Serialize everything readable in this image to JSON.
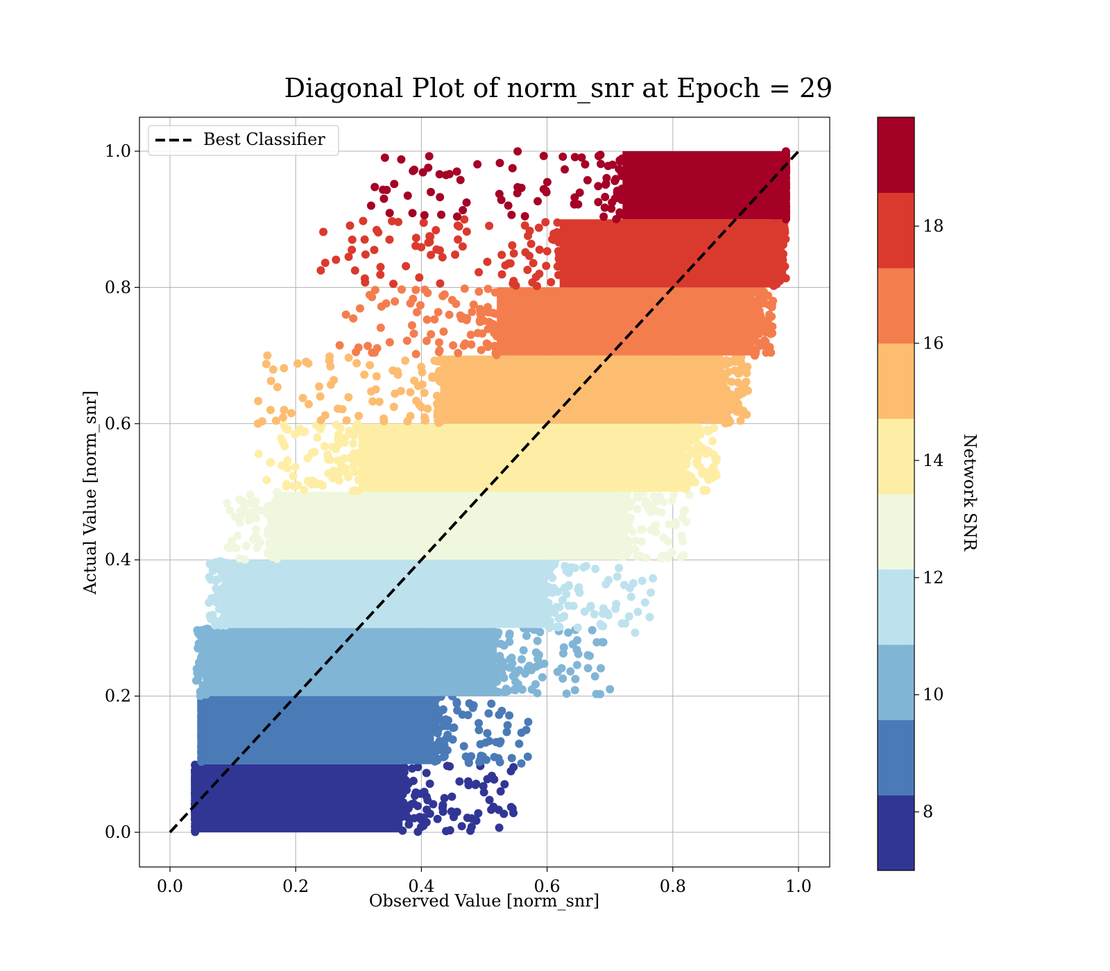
{
  "chart_data": {
    "type": "scatter",
    "title": "Diagonal Plot of norm_snr at Epoch = 29",
    "xlabel": "Observed Value [norm_snr]",
    "ylabel": "Actual Value [norm_snr]",
    "xlim": [
      -0.05,
      1.05
    ],
    "ylim": [
      -0.05,
      1.05
    ],
    "xticks": [
      "0.0",
      "0.2",
      "0.4",
      "0.6",
      "0.8",
      "1.0"
    ],
    "yticks": [
      "0.0",
      "0.2",
      "0.4",
      "0.6",
      "0.8",
      "1.0"
    ],
    "grid": true,
    "legend": {
      "position": "top-left",
      "entries": [
        "Best Classifier"
      ]
    },
    "reference_line": {
      "label": "Best Classifier",
      "x": [
        0,
        1
      ],
      "y": [
        0,
        1
      ],
      "style": "dashed",
      "color": "#000000"
    },
    "colorbar": {
      "label": "Network SNR",
      "range": [
        7,
        19.86
      ],
      "ticks": [
        "8",
        "10",
        "12",
        "14",
        "16",
        "18"
      ],
      "colormap": "RdYlBu_r",
      "bin_colors": [
        "#313695",
        "#4a7bb7",
        "#81b5d6",
        "#bde2ee",
        "#eff8de",
        "#feeea5",
        "#fcbd71",
        "#f47d4e",
        "#da3a2e",
        "#a50026"
      ]
    },
    "bands": [
      {
        "snr": 7.6,
        "y_range": [
          0.0,
          0.1
        ],
        "x_core": [
          0.04,
          0.37
        ],
        "x_spread": [
          0.04,
          0.55
        ],
        "color": "#313695"
      },
      {
        "snr": 8.9,
        "y_range": [
          0.1,
          0.2
        ],
        "x_core": [
          0.05,
          0.42
        ],
        "x_spread": [
          0.05,
          0.57
        ],
        "color": "#4a7bb7"
      },
      {
        "snr": 10.2,
        "y_range": [
          0.2,
          0.3
        ],
        "x_core": [
          0.06,
          0.52
        ],
        "x_spread": [
          0.04,
          0.7
        ],
        "color": "#81b5d6"
      },
      {
        "snr": 11.5,
        "y_range": [
          0.3,
          0.4
        ],
        "x_core": [
          0.09,
          0.6
        ],
        "x_spread": [
          0.06,
          0.77
        ],
        "color": "#bde2ee"
      },
      {
        "snr": 12.8,
        "y_range": [
          0.4,
          0.5
        ],
        "x_core": [
          0.17,
          0.72
        ],
        "x_spread": [
          0.09,
          0.83
        ],
        "color": "#eff8de"
      },
      {
        "snr": 14.1,
        "y_range": [
          0.5,
          0.6
        ],
        "x_core": [
          0.3,
          0.82
        ],
        "x_spread": [
          0.14,
          0.87
        ],
        "color": "#feeea5"
      },
      {
        "snr": 15.3,
        "y_range": [
          0.6,
          0.7
        ],
        "x_core": [
          0.43,
          0.88
        ],
        "x_spread": [
          0.14,
          0.92
        ],
        "color": "#fcbd71"
      },
      {
        "snr": 16.6,
        "y_range": [
          0.7,
          0.8
        ],
        "x_core": [
          0.52,
          0.93
        ],
        "x_spread": [
          0.28,
          0.96
        ],
        "color": "#f47d4e"
      },
      {
        "snr": 17.9,
        "y_range": [
          0.8,
          0.9
        ],
        "x_core": [
          0.62,
          0.96
        ],
        "x_spread": [
          0.24,
          0.98
        ],
        "color": "#da3a2e"
      },
      {
        "snr": 19.2,
        "y_range": [
          0.9,
          1.0
        ],
        "x_core": [
          0.72,
          0.98
        ],
        "x_spread": [
          0.32,
          0.98
        ],
        "color": "#a50026"
      }
    ],
    "outliers": [
      {
        "x": 0.32,
        "y": 0.92,
        "color": "#a50026"
      },
      {
        "x": 0.415,
        "y": 0.94,
        "color": "#a50026"
      },
      {
        "x": 0.545,
        "y": 0.975,
        "color": "#a50026"
      },
      {
        "x": 0.24,
        "y": 0.825,
        "color": "#da3a2e"
      },
      {
        "x": 0.29,
        "y": 0.87,
        "color": "#da3a2e"
      },
      {
        "x": 0.325,
        "y": 0.855,
        "color": "#da3a2e"
      },
      {
        "x": 0.335,
        "y": 0.83,
        "color": "#da3a2e"
      },
      {
        "x": 0.155,
        "y": 0.7,
        "color": "#fcbd71"
      },
      {
        "x": 0.16,
        "y": 0.62,
        "color": "#fcbd71"
      },
      {
        "x": 0.14,
        "y": 0.6,
        "color": "#fcbd71"
      },
      {
        "x": 0.27,
        "y": 0.715,
        "color": "#f47d4e"
      },
      {
        "x": 0.28,
        "y": 0.76,
        "color": "#f47d4e"
      },
      {
        "x": 0.665,
        "y": 0.26,
        "color": "#81b5d6"
      },
      {
        "x": 0.7,
        "y": 0.21,
        "color": "#81b5d6"
      },
      {
        "x": 0.645,
        "y": 0.225,
        "color": "#81b5d6"
      },
      {
        "x": 0.74,
        "y": 0.293,
        "color": "#bde2ee"
      },
      {
        "x": 0.765,
        "y": 0.352,
        "color": "#bde2ee"
      },
      {
        "x": 0.57,
        "y": 0.162,
        "color": "#4a7bb7"
      },
      {
        "x": 0.545,
        "y": 0.035,
        "color": "#313695"
      },
      {
        "x": 0.48,
        "y": 0.008,
        "color": "#313695"
      },
      {
        "x": 0.505,
        "y": 0.078,
        "color": "#313695"
      },
      {
        "x": 0.525,
        "y": 0.103,
        "color": "#4a7bb7"
      },
      {
        "x": 0.765,
        "y": 0.47,
        "color": "#eff8de"
      },
      {
        "x": 0.86,
        "y": 0.53,
        "color": "#feeea5"
      }
    ]
  }
}
